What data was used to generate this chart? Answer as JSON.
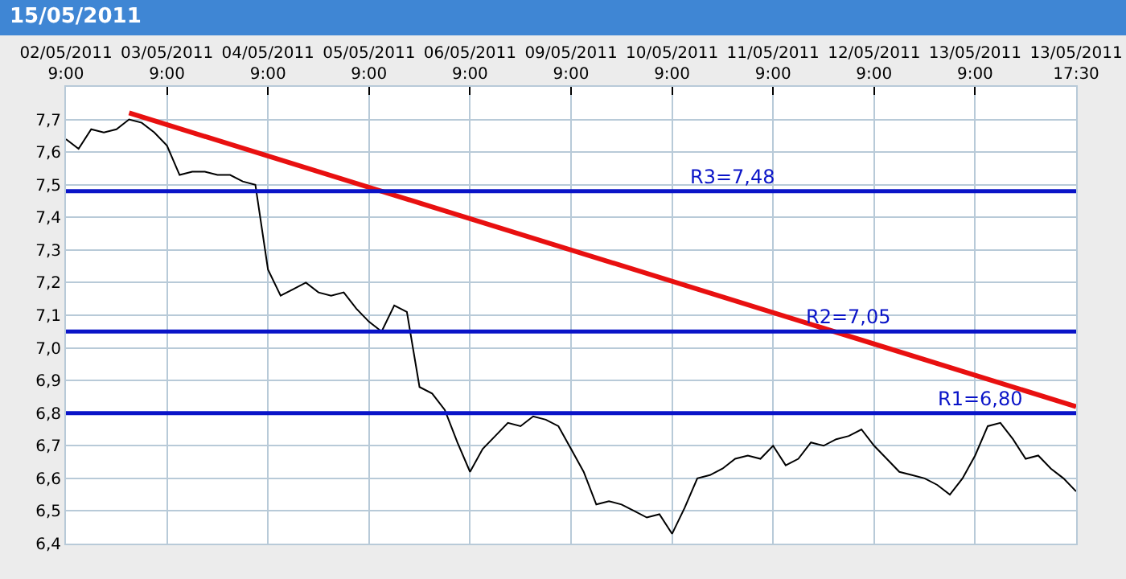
{
  "chart_data": {
    "type": "line",
    "title": "15/05/2011",
    "categories": [
      "02/05/2011\n9:00",
      null,
      null,
      null,
      null,
      null,
      null,
      null,
      "03/05/2011\n9:00",
      null,
      null,
      null,
      null,
      null,
      null,
      null,
      "04/05/2011\n9:00",
      null,
      null,
      null,
      null,
      null,
      null,
      null,
      "05/05/2011\n9:00",
      null,
      null,
      null,
      null,
      null,
      null,
      null,
      "06/05/2011\n9:00",
      null,
      null,
      null,
      null,
      null,
      null,
      null,
      "09/05/2011\n9:00",
      null,
      null,
      null,
      null,
      null,
      null,
      null,
      "10/05/2011\n9:00",
      null,
      null,
      null,
      null,
      null,
      null,
      null,
      "11/05/2011\n9:00",
      null,
      null,
      null,
      null,
      null,
      null,
      null,
      "12/05/2011\n9:00",
      null,
      null,
      null,
      null,
      null,
      null,
      null,
      "13/05/2011\n9:00",
      null,
      null,
      null,
      null,
      null,
      null,
      null,
      "13/05/2011\n17:30"
    ],
    "ylim": [
      6.4,
      7.8
    ],
    "yticks": [
      {
        "value": 6.4,
        "label": "6,4"
      },
      {
        "value": 6.5,
        "label": "6,5"
      },
      {
        "value": 6.6,
        "label": "6,6"
      },
      {
        "value": 6.7,
        "label": "6,7"
      },
      {
        "value": 6.8,
        "label": "6,8"
      },
      {
        "value": 6.9,
        "label": "6,9"
      },
      {
        "value": 7.0,
        "label": "7,0"
      },
      {
        "value": 7.1,
        "label": "7,1"
      },
      {
        "value": 7.2,
        "label": "7,2"
      },
      {
        "value": 7.3,
        "label": "7,3"
      },
      {
        "value": 7.4,
        "label": "7,4"
      },
      {
        "value": 7.5,
        "label": "7,5"
      },
      {
        "value": 7.6,
        "label": "7,6"
      },
      {
        "value": 7.7,
        "label": "7,7"
      }
    ],
    "grid": true,
    "marker": "none",
    "line_style": "solid",
    "series": [
      {
        "color": "#000000",
        "values": [
          7.64,
          7.61,
          7.67,
          7.66,
          7.67,
          7.7,
          7.69,
          7.66,
          7.62,
          7.53,
          7.54,
          7.54,
          7.53,
          7.53,
          7.51,
          7.5,
          7.24,
          7.16,
          7.18,
          7.2,
          7.17,
          7.16,
          7.17,
          7.12,
          7.08,
          7.05,
          7.13,
          7.11,
          6.88,
          6.86,
          6.81,
          6.71,
          6.62,
          6.69,
          6.73,
          6.77,
          6.76,
          6.79,
          6.78,
          6.76,
          6.69,
          6.62,
          6.52,
          6.53,
          6.52,
          6.5,
          6.48,
          6.49,
          6.43,
          6.51,
          6.6,
          6.61,
          6.63,
          6.66,
          6.67,
          6.66,
          6.7,
          6.64,
          6.66,
          6.71,
          6.7,
          6.72,
          6.73,
          6.75,
          6.7,
          6.66,
          6.62,
          6.61,
          6.6,
          6.58,
          6.55,
          6.6,
          6.67,
          6.76,
          6.77,
          6.72,
          6.66,
          6.67,
          6.63,
          6.6,
          6.56
        ]
      },
      {
        "color": "#e81010",
        "values": [
          null,
          null,
          null,
          null,
          null,
          7.72,
          null,
          null,
          null,
          null,
          null,
          null,
          null,
          null,
          null,
          null,
          null,
          null,
          null,
          null,
          null,
          null,
          null,
          null,
          null,
          null,
          null,
          null,
          null,
          null,
          null,
          null,
          null,
          null,
          null,
          null,
          null,
          null,
          null,
          null,
          null,
          null,
          null,
          null,
          null,
          null,
          null,
          null,
          null,
          null,
          null,
          null,
          null,
          null,
          null,
          null,
          null,
          null,
          null,
          null,
          null,
          null,
          null,
          null,
          null,
          null,
          null,
          null,
          null,
          null,
          null,
          null,
          null,
          null,
          null,
          null,
          null,
          null,
          null,
          null,
          6.82
        ]
      }
    ],
    "ref_lines": [
      {
        "axis": "y",
        "value": 7.48,
        "label": "R3=7,48",
        "color": "#0a14c8"
      },
      {
        "axis": "y",
        "value": 7.05,
        "label": "R2=7,05",
        "color": "#0a14c8"
      },
      {
        "axis": "y",
        "value": 6.8,
        "label": "R1=6,80",
        "color": "#0a14c8"
      }
    ]
  }
}
